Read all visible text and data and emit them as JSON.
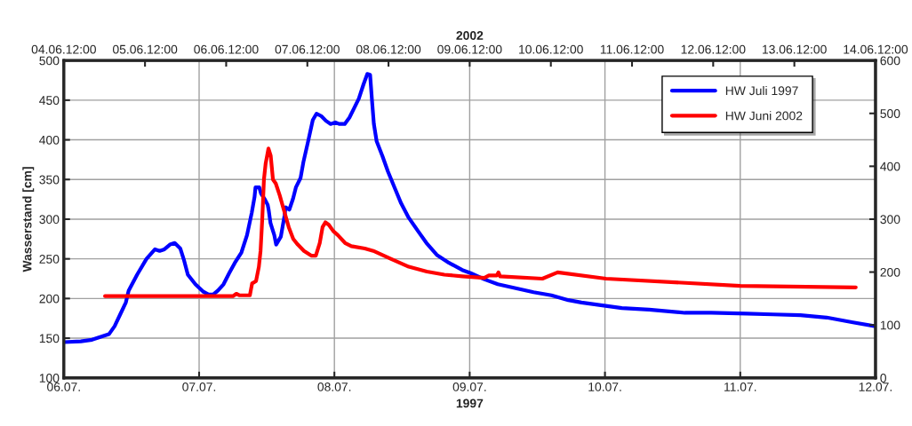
{
  "chart_data": {
    "type": "line",
    "xlabel": "1997",
    "x2label": "2002",
    "ylabel": "Wasserstand [cm]",
    "xlim": [
      "1997-07-06T00:00",
      "1997-07-12T00:00"
    ],
    "xticks": [
      {
        "value": "1997-07-06",
        "label": "06.07."
      },
      {
        "value": "1997-07-07",
        "label": "07.07."
      },
      {
        "value": "1997-07-08",
        "label": "08.07."
      },
      {
        "value": "1997-07-09",
        "label": "09.07."
      },
      {
        "value": "1997-07-10",
        "label": "10.07."
      },
      {
        "value": "1997-07-11",
        "label": "11.07."
      },
      {
        "value": "1997-07-12",
        "label": "12.07."
      }
    ],
    "x2lim": [
      "2002-06-04T12:00",
      "2002-06-14T12:00"
    ],
    "x2ticks": [
      {
        "value": "2002-06-04T12:00",
        "label": "04.06.12:00"
      },
      {
        "value": "2002-06-05T12:00",
        "label": "05.06.12:00"
      },
      {
        "value": "2002-06-06T12:00",
        "label": "06.06.12:00"
      },
      {
        "value": "2002-06-07T12:00",
        "label": "07.06.12:00"
      },
      {
        "value": "2002-06-08T12:00",
        "label": "08.06.12:00"
      },
      {
        "value": "2002-06-09T12:00",
        "label": "09.06.12:00"
      },
      {
        "value": "2002-06-10T12:00",
        "label": "10.06.12:00"
      },
      {
        "value": "2002-06-11T12:00",
        "label": "11.06.12:00"
      },
      {
        "value": "2002-06-12T12:00",
        "label": "12.06.12:00"
      },
      {
        "value": "2002-06-13T12:00",
        "label": "13.06.12:00"
      },
      {
        "value": "2002-06-14T12:00",
        "label": "14.06.12:00"
      }
    ],
    "ylim": [
      100,
      500
    ],
    "yticks": [
      100,
      150,
      200,
      250,
      300,
      350,
      400,
      450,
      500
    ],
    "y2lim": [
      0,
      600
    ],
    "y2ticks": [
      0,
      100,
      200,
      300,
      400,
      500,
      600
    ],
    "grid": true,
    "legend": "top right",
    "marker": "none",
    "line_style": "solid",
    "series": [
      {
        "name": "HW Juli 1997",
        "color": "#0000ff",
        "x": [
          "1997-07-06T00:00",
          "1997-07-06T03:00",
          "1997-07-06T05:00",
          "1997-07-06T08:00",
          "1997-07-06T09:00",
          "1997-07-06T10:00",
          "1997-07-06T11:00",
          "1997-07-06T11:30",
          "1997-07-06T13:00",
          "1997-07-06T14:40",
          "1997-07-06T16:10",
          "1997-07-06T17:00",
          "1997-07-06T17:50",
          "1997-07-06T18:50",
          "1997-07-06T19:40",
          "1997-07-06T20:40",
          "1997-07-06T21:20",
          "1997-07-06T22:00",
          "1997-07-06T23:20",
          "1997-07-07T00:40",
          "1997-07-07T01:40",
          "1997-07-07T02:30",
          "1997-07-07T03:20",
          "1997-07-07T04:20",
          "1997-07-07T05:20",
          "1997-07-07T06:20",
          "1997-07-07T07:30",
          "1997-07-07T08:30",
          "1997-07-07T09:20",
          "1997-07-07T09:50",
          "1997-07-07T10:00",
          "1997-07-07T10:40",
          "1997-07-07T11:00",
          "1997-07-07T11:40",
          "1997-07-07T12:10",
          "1997-07-07T12:20",
          "1997-07-07T12:40",
          "1997-07-07T13:20",
          "1997-07-07T13:40",
          "1997-07-07T14:30",
          "1997-07-07T15:10",
          "1997-07-07T15:20",
          "1997-07-07T16:00",
          "1997-07-07T16:40",
          "1997-07-07T17:10",
          "1997-07-07T18:00",
          "1997-07-07T18:30",
          "1997-07-07T19:20",
          "1997-07-07T20:10",
          "1997-07-07T20:50",
          "1997-07-07T21:40",
          "1997-07-07T22:30",
          "1997-07-07T23:20",
          "1997-07-08T00:10",
          "1997-07-08T00:50",
          "1997-07-08T01:50",
          "1997-07-08T02:40",
          "1997-07-08T03:30",
          "1997-07-08T04:20",
          "1997-07-08T05:10",
          "1997-07-08T05:50",
          "1997-07-08T06:20",
          "1997-07-08T06:40",
          "1997-07-08T07:00",
          "1997-07-08T07:30",
          "1997-07-08T08:30",
          "1997-07-08T09:30",
          "1997-07-08T10:40",
          "1997-07-08T11:50",
          "1997-07-08T13:10",
          "1997-07-08T14:50",
          "1997-07-08T16:20",
          "1997-07-08T18:10",
          "1997-07-08T20:20",
          "1997-07-08T22:40",
          "1997-07-09T00:10",
          "1997-07-09T02:40",
          "1997-07-09T05:00",
          "1997-07-09T08:10",
          "1997-07-09T11:20",
          "1997-07-09T14:30",
          "1997-07-09T17:30",
          "1997-07-09T19:50",
          "1997-07-09T23:50",
          "1997-07-10T03:00",
          "1997-07-10T07:50",
          "1997-07-10T14:10",
          "1997-07-10T18:50",
          "1997-07-11T01:10",
          "1997-07-11T05:50",
          "1997-07-11T10:40",
          "1997-07-11T15:20",
          "1997-07-11T20:00",
          "1997-07-12T00:00"
        ],
        "values": [
          145,
          146,
          148,
          155,
          165,
          180,
          195,
          210,
          230,
          250,
          262,
          260,
          262,
          268,
          270,
          263,
          248,
          230,
          218,
          209,
          205,
          205,
          210,
          218,
          232,
          245,
          258,
          280,
          308,
          328,
          340,
          340,
          332,
          325,
          318,
          312,
          295,
          280,
          268,
          278,
          305,
          315,
          312,
          326,
          340,
          352,
          372,
          398,
          425,
          433,
          430,
          424,
          420,
          422,
          420,
          420,
          428,
          440,
          452,
          470,
          483,
          482,
          450,
          420,
          398,
          380,
          360,
          340,
          320,
          302,
          285,
          270,
          255,
          245,
          236,
          232,
          224,
          218,
          213,
          208,
          204,
          198,
          195,
          191,
          188,
          186,
          182,
          182,
          181,
          180,
          179,
          176,
          170,
          165
        ]
      },
      {
        "name": "HW Juni 2002",
        "color": "#ff0000",
        "axis": "x2",
        "x": [
          "2002-06-05T00:10",
          "2002-06-06T14:00",
          "2002-06-06T15:00",
          "2002-06-06T16:00",
          "2002-06-06T19:00",
          "2002-06-06T19:40",
          "2002-06-06T20:50",
          "2002-06-06T21:40",
          "2002-06-06T22:10",
          "2002-06-06T22:40",
          "2002-06-06T23:10",
          "2002-06-06T23:40",
          "2002-06-07T00:30",
          "2002-06-07T01:10",
          "2002-06-07T01:50",
          "2002-06-07T02:40",
          "2002-06-07T03:50",
          "2002-06-07T05:10",
          "2002-06-07T06:30",
          "2002-06-07T07:50",
          "2002-06-07T09:10",
          "2002-06-07T11:00",
          "2002-06-07T13:10",
          "2002-06-07T14:30",
          "2002-06-07T15:40",
          "2002-06-07T16:30",
          "2002-06-07T17:20",
          "2002-06-07T18:20",
          "2002-06-07T19:40",
          "2002-06-07T21:00",
          "2002-06-07T23:10",
          "2002-06-08T01:00",
          "2002-06-08T05:00",
          "2002-06-08T07:30",
          "2002-06-08T12:40",
          "2002-06-08T18:00",
          "2002-06-08T23:20",
          "2002-06-09T04:30",
          "2002-06-09T09:50",
          "2002-06-09T16:20",
          "2002-06-09T17:40",
          "2002-06-09T20:00",
          "2002-06-09T20:30",
          "2002-06-09T21:00",
          "2002-06-10T09:30",
          "2002-06-10T14:00",
          "2002-06-11T04:20",
          "2002-06-12T02:40",
          "2002-06-12T20:00",
          "2002-06-14T06:10"
        ],
        "values": [
          203,
          203,
          206,
          204,
          204,
          219,
          222,
          240,
          260,
          300,
          350,
          370,
          389,
          380,
          350,
          345,
          330,
          310,
          290,
          275,
          268,
          260,
          254,
          254,
          270,
          290,
          296,
          293,
          285,
          280,
          270,
          266,
          263,
          260,
          250,
          240,
          234,
          230,
          228,
          226,
          229,
          229,
          233,
          228,
          225,
          233,
          225,
          220,
          216,
          214
        ]
      }
    ]
  }
}
